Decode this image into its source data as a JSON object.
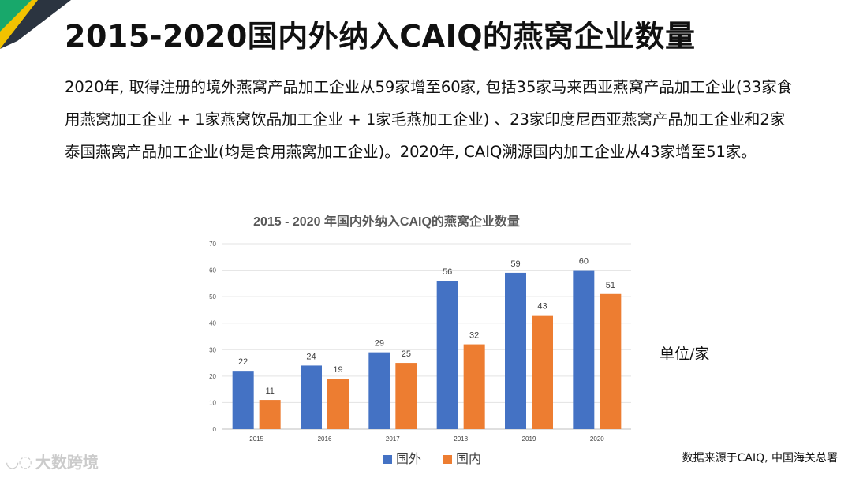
{
  "slide": {
    "title": "2015-2020国内外纳入CAIQ的燕窝企业数量",
    "body": "2020年, 取得注册的境外燕窝产品加工企业从59家增至60家, 包括35家马来西亚燕窝产品加工企业(33家食用燕窝加工企业 + 1家燕窝饮品加工企业 + 1家毛燕加工企业) 、23家印度尼西亚燕窝产品加工企业和2家泰国燕窝产品加工企业(均是食用燕窝加工企业)。2020年, CAIQ溯源国内加工企业从43家增至51家。",
    "unit": "单位/家",
    "source": "数据来源于CAIQ, 中国海关总署",
    "watermark": "大数跨境"
  },
  "colors": {
    "series_domestic_foreign": "#4472C4",
    "series_domestic": "#ED7D31",
    "corner_yellow": "#F2C200",
    "corner_green": "#18A86B",
    "corner_dark": "#2B3440"
  },
  "chart_data": {
    "type": "bar",
    "title": "2015 - 2020 年国内外纳入CAIQ的燕窝企业数量",
    "categories": [
      "2015",
      "2016",
      "2017",
      "2018",
      "2019",
      "2020"
    ],
    "series": [
      {
        "name": "国外",
        "values": [
          22,
          24,
          29,
          56,
          59,
          60
        ],
        "color": "#4472C4"
      },
      {
        "name": "国内",
        "values": [
          11,
          19,
          25,
          32,
          43,
          51
        ],
        "color": "#ED7D31"
      }
    ],
    "ylim": [
      0,
      70
    ],
    "yticks": [
      0,
      10,
      20,
      30,
      40,
      50,
      60,
      70
    ],
    "grid": true,
    "legend": "bottom",
    "data_labels": true
  }
}
